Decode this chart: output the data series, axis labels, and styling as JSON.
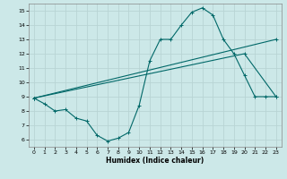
{
  "xlabel": "Humidex (Indice chaleur)",
  "xlim": [
    -0.5,
    23.5
  ],
  "ylim": [
    5.5,
    15.5
  ],
  "xticks": [
    0,
    1,
    2,
    3,
    4,
    5,
    6,
    7,
    8,
    9,
    10,
    11,
    12,
    13,
    14,
    15,
    16,
    17,
    18,
    19,
    20,
    21,
    22,
    23
  ],
  "yticks": [
    6,
    7,
    8,
    9,
    10,
    11,
    12,
    13,
    14,
    15
  ],
  "background_color": "#cce8e8",
  "grid_color": "#b8d4d4",
  "line_color": "#006868",
  "series0_x": [
    0,
    1,
    2,
    3,
    4,
    5,
    6,
    7,
    8,
    9,
    10,
    11,
    12,
    13,
    14,
    15,
    16,
    17,
    18,
    19,
    20,
    21,
    22,
    23
  ],
  "series0_y": [
    8.9,
    8.5,
    8.0,
    8.1,
    7.5,
    7.3,
    6.3,
    5.9,
    6.1,
    6.5,
    8.4,
    11.5,
    13.0,
    13.0,
    14.0,
    14.9,
    15.2,
    14.7,
    13.0,
    12.0,
    10.5,
    9.0,
    9.0,
    9.0
  ],
  "series1_x": [
    0,
    23
  ],
  "series1_y": [
    8.9,
    13.0
  ],
  "series2_x": [
    0,
    20,
    23
  ],
  "series2_y": [
    8.9,
    12.0,
    9.0
  ]
}
